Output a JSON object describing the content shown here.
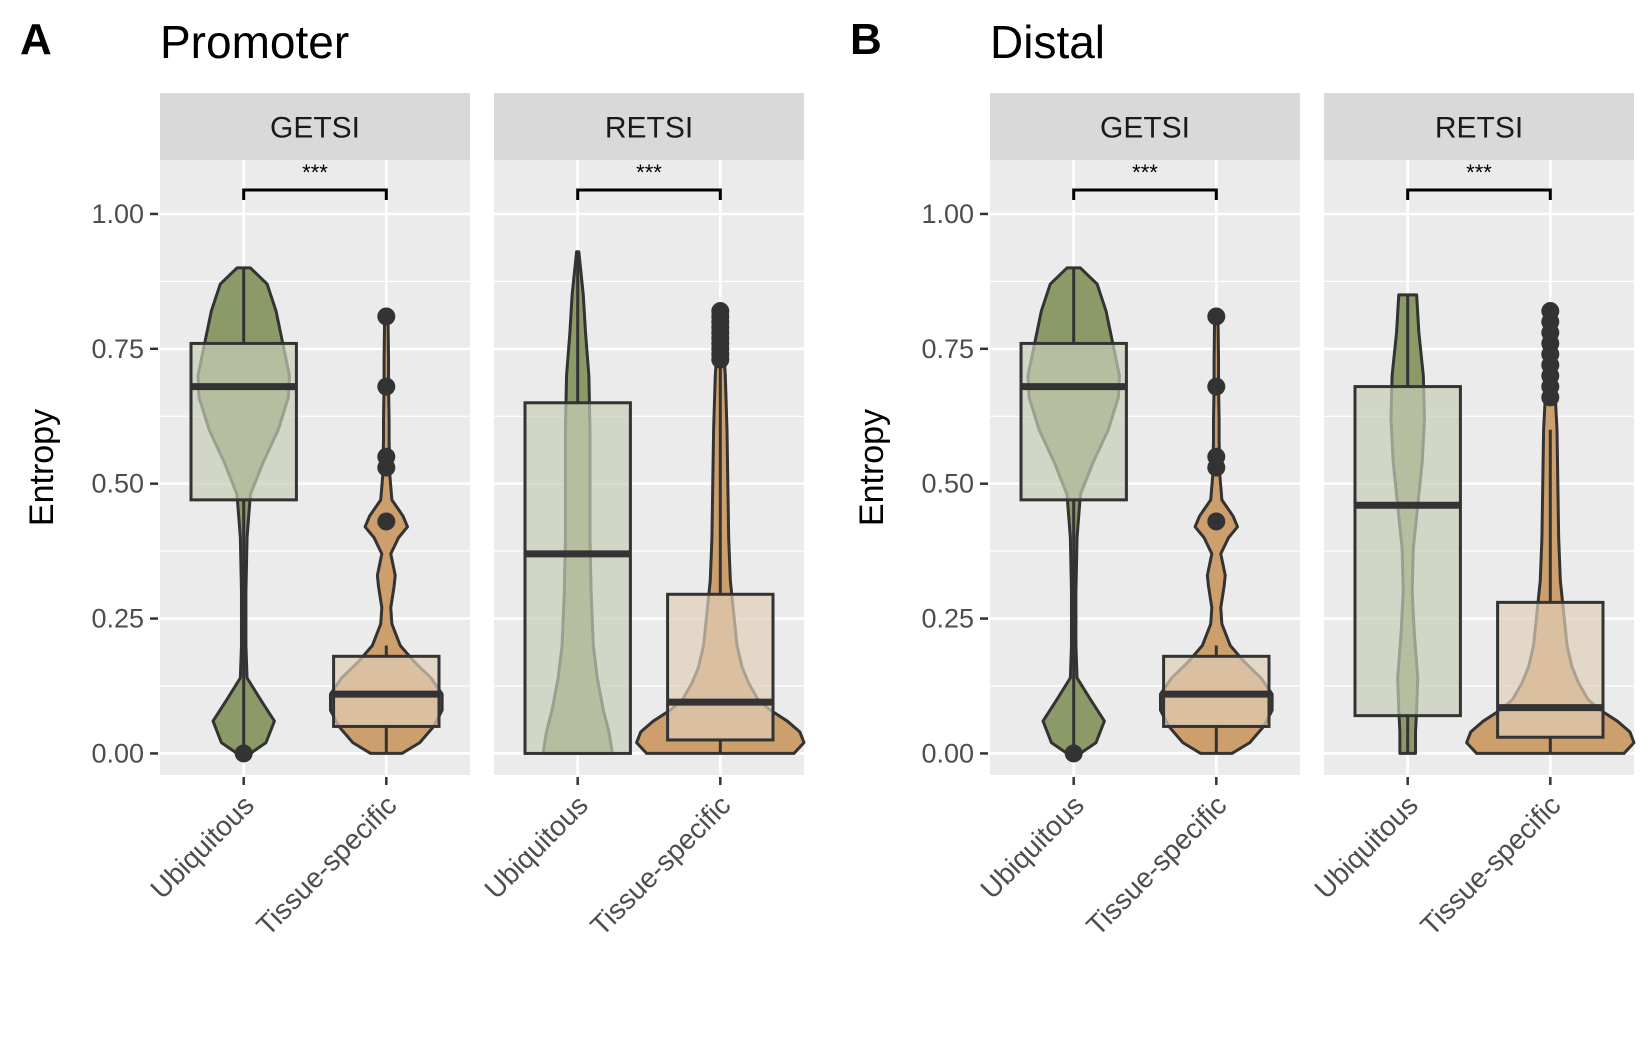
{
  "colors": {
    "ubiquitous": "#8c9a68",
    "tissue_specific": "#cd9f6c",
    "box_ubiquitous": "#c8cdb8",
    "box_tissue_specific": "#dfcfb8",
    "outline": "#333333",
    "panel_bg": "#ebebeb",
    "strip_bg": "#d9d9d9",
    "grid": "#ffffff"
  },
  "chart_data": [
    {
      "type": "violin+box",
      "panel_letter": "A",
      "title": "Promoter",
      "ylabel": "Entropy",
      "ylim": [
        -0.04,
        1.1
      ],
      "yticks": [
        "0.00",
        "0.25",
        "0.50",
        "0.75",
        "1.00"
      ],
      "categories": [
        "Ubiquitous",
        "Tissue-specific"
      ],
      "facets": [
        {
          "name": "GETSI",
          "significance": "***",
          "groups": [
            {
              "category": "Ubiquitous",
              "color_key": "ubiquitous",
              "max_width": 0.18,
              "box": {
                "q1": 0.47,
                "median": 0.68,
                "q3": 0.76,
                "whisker_low": 0.0,
                "whisker_high": 0.9
              },
              "violin": [
                [
                  0.0,
                  0.12
                ],
                [
                  0.02,
                  0.4
                ],
                [
                  0.06,
                  0.55
                ],
                [
                  0.1,
                  0.3
                ],
                [
                  0.14,
                  0.06
                ],
                [
                  0.2,
                  0.04
                ],
                [
                  0.3,
                  0.04
                ],
                [
                  0.4,
                  0.06
                ],
                [
                  0.48,
                  0.12
                ],
                [
                  0.54,
                  0.35
                ],
                [
                  0.6,
                  0.62
                ],
                [
                  0.66,
                  0.8
                ],
                [
                  0.7,
                  0.82
                ],
                [
                  0.76,
                  0.7
                ],
                [
                  0.82,
                  0.58
                ],
                [
                  0.87,
                  0.42
                ],
                [
                  0.9,
                  0.12
                ]
              ],
              "outliers": [
                0.0
              ]
            },
            {
              "category": "Tissue-specific",
              "color_key": "tissue_specific",
              "max_width": 0.18,
              "box": {
                "q1": 0.05,
                "median": 0.11,
                "q3": 0.18,
                "whisker_low": 0.0,
                "whisker_high": 0.2
              },
              "violin": [
                [
                  0.0,
                  0.28
                ],
                [
                  0.02,
                  0.6
                ],
                [
                  0.05,
                  0.85
                ],
                [
                  0.08,
                  1.0
                ],
                [
                  0.11,
                  1.0
                ],
                [
                  0.14,
                  0.8
                ],
                [
                  0.17,
                  0.5
                ],
                [
                  0.2,
                  0.25
                ],
                [
                  0.24,
                  0.1
                ],
                [
                  0.27,
                  0.08
                ],
                [
                  0.31,
                  0.14
                ],
                [
                  0.33,
                  0.16
                ],
                [
                  0.35,
                  0.12
                ],
                [
                  0.37,
                  0.08
                ],
                [
                  0.4,
                  0.22
                ],
                [
                  0.42,
                  0.38
                ],
                [
                  0.44,
                  0.3
                ],
                [
                  0.47,
                  0.1
                ],
                [
                  0.52,
                  0.06
                ],
                [
                  0.54,
                  0.06
                ],
                [
                  0.58,
                  0.05
                ],
                [
                  0.62,
                  0.05
                ],
                [
                  0.68,
                  0.04
                ],
                [
                  0.73,
                  0.04
                ],
                [
                  0.81,
                  0.03
                ]
              ],
              "outliers": [
                0.81,
                0.68,
                0.55,
                0.53,
                0.43
              ]
            }
          ]
        },
        {
          "name": "RETSI",
          "significance": "***",
          "groups": [
            {
              "category": "Ubiquitous",
              "color_key": "ubiquitous",
              "max_width": 0.18,
              "box": {
                "q1": 0.0,
                "median": 0.37,
                "q3": 0.65,
                "whisker_low": 0.0,
                "whisker_high": 0.93
              },
              "violin": [
                [
                  0.0,
                  0.62
                ],
                [
                  0.04,
                  0.56
                ],
                [
                  0.08,
                  0.46
                ],
                [
                  0.14,
                  0.35
                ],
                [
                  0.2,
                  0.28
                ],
                [
                  0.3,
                  0.24
                ],
                [
                  0.4,
                  0.22
                ],
                [
                  0.5,
                  0.22
                ],
                [
                  0.6,
                  0.22
                ],
                [
                  0.7,
                  0.2
                ],
                [
                  0.78,
                  0.14
                ],
                [
                  0.85,
                  0.1
                ],
                [
                  0.93,
                  0.02
                ]
              ],
              "outliers": []
            },
            {
              "category": "Tissue-specific",
              "color_key": "tissue_specific",
              "max_width": 0.27,
              "box": {
                "q1": 0.025,
                "median": 0.095,
                "q3": 0.295,
                "whisker_low": 0.0,
                "whisker_high": 0.72
              },
              "violin": [
                [
                  0.0,
                  0.88
                ],
                [
                  0.02,
                  1.0
                ],
                [
                  0.04,
                  0.95
                ],
                [
                  0.06,
                  0.8
                ],
                [
                  0.08,
                  0.6
                ],
                [
                  0.1,
                  0.45
                ],
                [
                  0.13,
                  0.34
                ],
                [
                  0.16,
                  0.26
                ],
                [
                  0.2,
                  0.2
                ],
                [
                  0.26,
                  0.16
                ],
                [
                  0.32,
                  0.12
                ],
                [
                  0.4,
                  0.1
                ],
                [
                  0.5,
                  0.09
                ],
                [
                  0.6,
                  0.08
                ],
                [
                  0.7,
                  0.06
                ],
                [
                  0.75,
                  0.04
                ],
                [
                  0.82,
                  0.03
                ]
              ],
              "outliers": [
                0.82,
                0.81,
                0.8,
                0.79,
                0.78,
                0.77,
                0.76,
                0.75,
                0.74,
                0.73
              ]
            }
          ]
        }
      ]
    },
    {
      "type": "violin+box",
      "panel_letter": "B",
      "title": "Distal",
      "ylabel": "Entropy",
      "ylim": [
        -0.04,
        1.1
      ],
      "yticks": [
        "0.00",
        "0.25",
        "0.50",
        "0.75",
        "1.00"
      ],
      "categories": [
        "Ubiquitous",
        "Tissue-specific"
      ],
      "facets": [
        {
          "name": "GETSI",
          "significance": "***",
          "groups": [
            {
              "category": "Ubiquitous",
              "color_key": "ubiquitous",
              "max_width": 0.18,
              "box": {
                "q1": 0.47,
                "median": 0.68,
                "q3": 0.76,
                "whisker_low": 0.0,
                "whisker_high": 0.9
              },
              "violin": [
                [
                  0.0,
                  0.12
                ],
                [
                  0.02,
                  0.4
                ],
                [
                  0.06,
                  0.55
                ],
                [
                  0.1,
                  0.3
                ],
                [
                  0.14,
                  0.06
                ],
                [
                  0.2,
                  0.04
                ],
                [
                  0.3,
                  0.04
                ],
                [
                  0.4,
                  0.06
                ],
                [
                  0.48,
                  0.12
                ],
                [
                  0.54,
                  0.35
                ],
                [
                  0.6,
                  0.62
                ],
                [
                  0.66,
                  0.8
                ],
                [
                  0.7,
                  0.82
                ],
                [
                  0.76,
                  0.7
                ],
                [
                  0.82,
                  0.58
                ],
                [
                  0.87,
                  0.42
                ],
                [
                  0.9,
                  0.12
                ]
              ],
              "outliers": [
                0.0
              ]
            },
            {
              "category": "Tissue-specific",
              "color_key": "tissue_specific",
              "max_width": 0.18,
              "box": {
                "q1": 0.05,
                "median": 0.11,
                "q3": 0.18,
                "whisker_low": 0.0,
                "whisker_high": 0.2
              },
              "violin": [
                [
                  0.0,
                  0.28
                ],
                [
                  0.02,
                  0.6
                ],
                [
                  0.05,
                  0.85
                ],
                [
                  0.08,
                  1.0
                ],
                [
                  0.11,
                  1.0
                ],
                [
                  0.14,
                  0.8
                ],
                [
                  0.17,
                  0.5
                ],
                [
                  0.2,
                  0.25
                ],
                [
                  0.24,
                  0.1
                ],
                [
                  0.27,
                  0.08
                ],
                [
                  0.31,
                  0.14
                ],
                [
                  0.33,
                  0.16
                ],
                [
                  0.35,
                  0.12
                ],
                [
                  0.37,
                  0.08
                ],
                [
                  0.4,
                  0.22
                ],
                [
                  0.42,
                  0.38
                ],
                [
                  0.44,
                  0.3
                ],
                [
                  0.47,
                  0.1
                ],
                [
                  0.52,
                  0.06
                ],
                [
                  0.54,
                  0.06
                ],
                [
                  0.58,
                  0.05
                ],
                [
                  0.62,
                  0.05
                ],
                [
                  0.68,
                  0.04
                ],
                [
                  0.73,
                  0.04
                ],
                [
                  0.81,
                  0.03
                ]
              ],
              "outliers": [
                0.81,
                0.68,
                0.55,
                0.53,
                0.43
              ]
            }
          ]
        },
        {
          "name": "RETSI",
          "significance": "***",
          "groups": [
            {
              "category": "Ubiquitous",
              "color_key": "ubiquitous",
              "max_width": 0.18,
              "box": {
                "q1": 0.07,
                "median": 0.46,
                "q3": 0.68,
                "whisker_low": 0.0,
                "whisker_high": 0.85
              },
              "violin": [
                [
                  0.0,
                  0.14
                ],
                [
                  0.04,
                  0.14
                ],
                [
                  0.08,
                  0.16
                ],
                [
                  0.14,
                  0.18
                ],
                [
                  0.22,
                  0.12
                ],
                [
                  0.3,
                  0.08
                ],
                [
                  0.38,
                  0.1
                ],
                [
                  0.46,
                  0.18
                ],
                [
                  0.54,
                  0.26
                ],
                [
                  0.62,
                  0.3
                ],
                [
                  0.7,
                  0.28
                ],
                [
                  0.78,
                  0.2
                ],
                [
                  0.85,
                  0.16
                ]
              ],
              "outliers": []
            },
            {
              "category": "Tissue-specific",
              "color_key": "tissue_specific",
              "max_width": 0.27,
              "box": {
                "q1": 0.03,
                "median": 0.085,
                "q3": 0.28,
                "whisker_low": 0.0,
                "whisker_high": 0.6
              },
              "violin": [
                [
                  0.0,
                  0.88
                ],
                [
                  0.02,
                  1.0
                ],
                [
                  0.04,
                  0.95
                ],
                [
                  0.06,
                  0.8
                ],
                [
                  0.08,
                  0.6
                ],
                [
                  0.1,
                  0.45
                ],
                [
                  0.13,
                  0.34
                ],
                [
                  0.16,
                  0.26
                ],
                [
                  0.2,
                  0.2
                ],
                [
                  0.26,
                  0.16
                ],
                [
                  0.32,
                  0.12
                ],
                [
                  0.4,
                  0.1
                ],
                [
                  0.5,
                  0.09
                ],
                [
                  0.6,
                  0.08
                ],
                [
                  0.66,
                  0.06
                ],
                [
                  0.72,
                  0.04
                ],
                [
                  0.82,
                  0.03
                ]
              ],
              "outliers": [
                0.82,
                0.8,
                0.78,
                0.76,
                0.74,
                0.72,
                0.7,
                0.68,
                0.66
              ]
            }
          ]
        }
      ]
    }
  ]
}
